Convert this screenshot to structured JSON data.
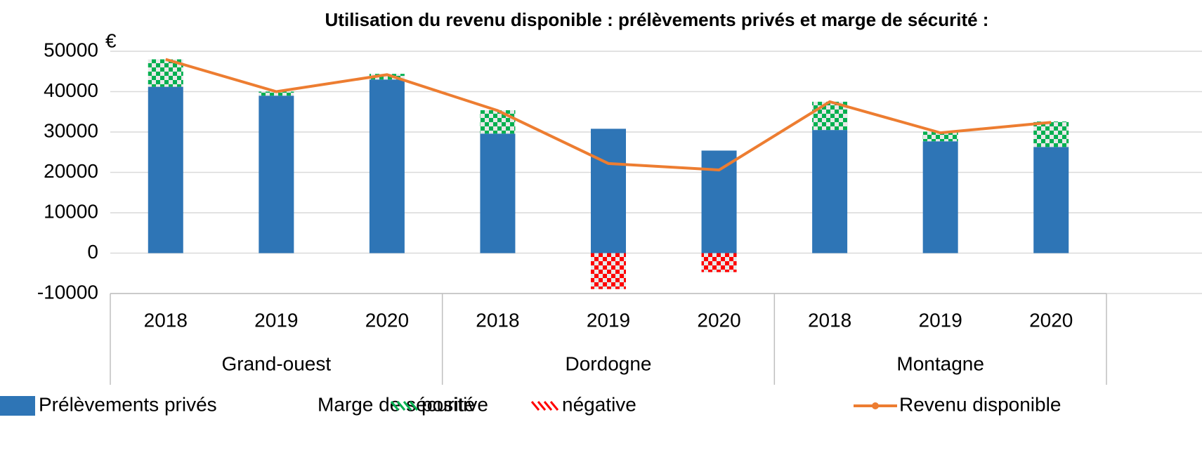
{
  "chart_data": {
    "type": "bar",
    "title": "Utilisation du revenu disponible : prélèvements privés et marge de sécurité :",
    "y_unit": "€",
    "categories": [
      "2018",
      "2019",
      "2020",
      "2018",
      "2019",
      "2020",
      "2018",
      "2019",
      "2020"
    ],
    "groups": [
      "Grand-ouest",
      "Dordogne",
      "Montagne"
    ],
    "legend_group_label": "Marge de sécurité",
    "series": [
      {
        "name": "Prélèvements privés",
        "color": "#2e75b6",
        "kind": "bar",
        "values": [
          41200,
          39000,
          43000,
          29600,
          30800,
          25400,
          30500,
          27700,
          26300
        ]
      },
      {
        "name": "positive",
        "color": "#00b050",
        "kind": "bar",
        "pattern": true,
        "values": [
          6800,
          1000,
          1400,
          5800,
          null,
          null,
          7000,
          2400,
          6300
        ]
      },
      {
        "name": "négative",
        "color": "#ff0000",
        "kind": "bar",
        "pattern": true,
        "values": [
          null,
          null,
          null,
          null,
          -8900,
          -4700,
          null,
          null,
          null
        ]
      },
      {
        "name": "Revenu disponible",
        "color": "#ed7d31",
        "kind": "line",
        "values": [
          48000,
          40000,
          44200,
          35300,
          22200,
          20600,
          37500,
          29800,
          32400
        ]
      }
    ],
    "ylim": [
      -10000,
      50000
    ],
    "yticks": [
      -10000,
      0,
      10000,
      20000,
      30000,
      40000,
      50000
    ],
    "grid": true
  }
}
